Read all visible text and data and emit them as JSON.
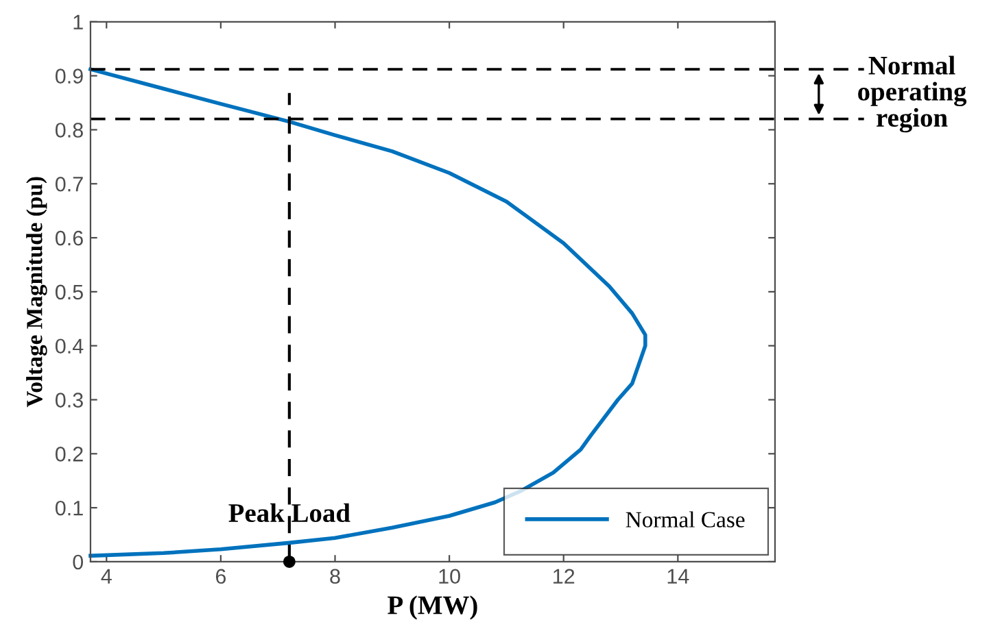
{
  "chart_data": {
    "type": "line",
    "xlabel": "P (MW)",
    "ylabel": "Voltage Magnitude (pu)",
    "xlim": [
      3.72,
      15.7
    ],
    "ylim": [
      0,
      1
    ],
    "xticks": [
      4,
      6,
      8,
      10,
      12,
      14
    ],
    "yticks": [
      0,
      0.1,
      0.2,
      0.3,
      0.4,
      0.5,
      0.6,
      0.7,
      0.8,
      0.9,
      1
    ],
    "grid": false,
    "legend": "bottom right",
    "series": [
      {
        "name": "Normal Case",
        "color": "#0072bd",
        "x": [
          3.72,
          5,
          6,
          7.2,
          8,
          9,
          10,
          11,
          12,
          12.8,
          13.2,
          13.43,
          13.43,
          13.2,
          12.95,
          12.47,
          12.3,
          11.82,
          11.27,
          10.8,
          10,
          9,
          8,
          7.2,
          6,
          5,
          3.72
        ],
        "values": [
          0.912,
          0.876,
          0.848,
          0.815,
          0.79,
          0.76,
          0.72,
          0.667,
          0.59,
          0.51,
          0.46,
          0.42,
          0.4,
          0.33,
          0.3,
          0.233,
          0.208,
          0.165,
          0.132,
          0.11,
          0.085,
          0.063,
          0.044,
          0.035,
          0.023,
          0.016,
          0.011
        ]
      },
      {
        "type": "line",
        "color": "#000000",
        "line_style": "dashed",
        "x": [
          7.2,
          7.2
        ],
        "values": [
          0,
          0.868
        ]
      },
      {
        "type": "scatter",
        "color": "#000000",
        "marker": "circle",
        "x": [
          7.2
        ],
        "values": [
          0
        ]
      }
    ],
    "ref_lines": [
      {
        "axis": "y",
        "value": 0.912,
        "color": "#000000",
        "line_style": "dashed"
      },
      {
        "axis": "y",
        "value": 0.82,
        "color": "#000000",
        "line_style": "dashed"
      }
    ],
    "annotations": [
      {
        "text": "Peak Load",
        "x": 7.2,
        "y": 0
      },
      "Normal operating region"
    ]
  }
}
